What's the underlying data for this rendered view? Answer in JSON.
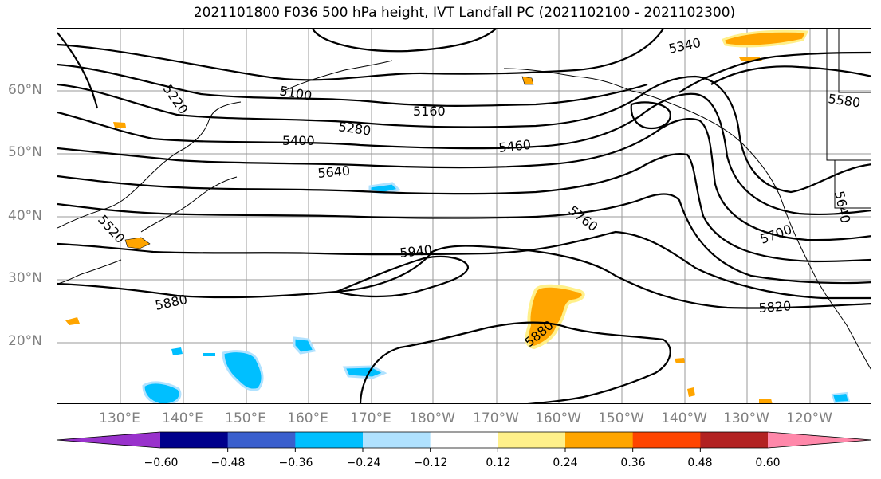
{
  "title": "2021101800 F036 500 hPa height, IVT Landfall PC (2021102100 - 2021102300)",
  "lat_labels": [
    "60°N",
    "50°N",
    "40°N",
    "30°N",
    "20°N"
  ],
  "lon_labels": [
    "130°E",
    "140°E",
    "150°E",
    "160°E",
    "170°E",
    "180°W",
    "170°W",
    "160°W",
    "150°W",
    "140°W",
    "130°W",
    "120°W"
  ],
  "contour_labels": [
    "5220",
    "5100",
    "5160",
    "5280",
    "5400",
    "5460",
    "5640",
    "5340",
    "5580",
    "5520",
    "5760",
    "5940",
    "5700",
    "5640",
    "5880",
    "5880",
    "5820"
  ],
  "colorbar": {
    "ticks": [
      "−0.60",
      "−0.48",
      "−0.36",
      "−0.24",
      "−0.12",
      "0.12",
      "0.24",
      "0.36",
      "0.48",
      "0.60"
    ],
    "colors": [
      "#9932cc",
      "#00008b",
      "#3a5fcd",
      "#00bfff",
      "#b0e2ff",
      "#ffffff",
      "#fff08a",
      "#ffa500",
      "#ff4500",
      "#b22222",
      "#ff88aa"
    ]
  },
  "colors": {
    "contour": "#000000",
    "grid": "#9a9a9a",
    "positive_fill": "#ffa500",
    "positive_light": "#fff08a",
    "negative_fill": "#00bfff",
    "negative_light": "#b0e2ff"
  }
}
